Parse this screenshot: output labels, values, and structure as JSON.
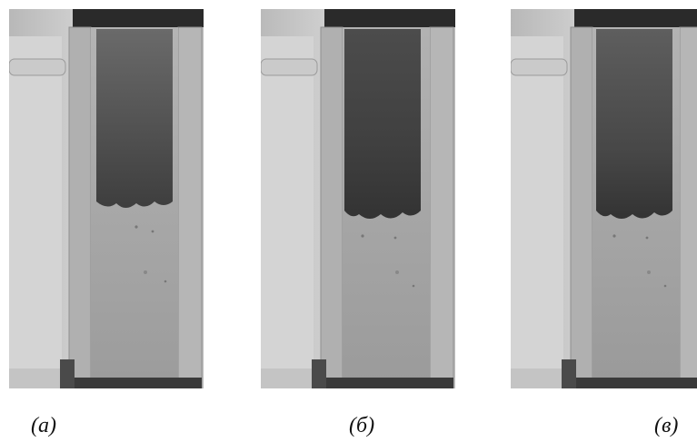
{
  "figure": {
    "panels": [
      {
        "label": "(a)",
        "foam_fraction": 0.52
      },
      {
        "label": "(б)",
        "foam_fraction": 0.57
      },
      {
        "label": "(в)",
        "foam_fraction": 0.57
      }
    ],
    "colors": {
      "background": "#ffffff",
      "liquid": "#a9a9a9",
      "foam": "#4f4f4f",
      "frame": "#1e1e1e",
      "caption": "#111111"
    }
  }
}
